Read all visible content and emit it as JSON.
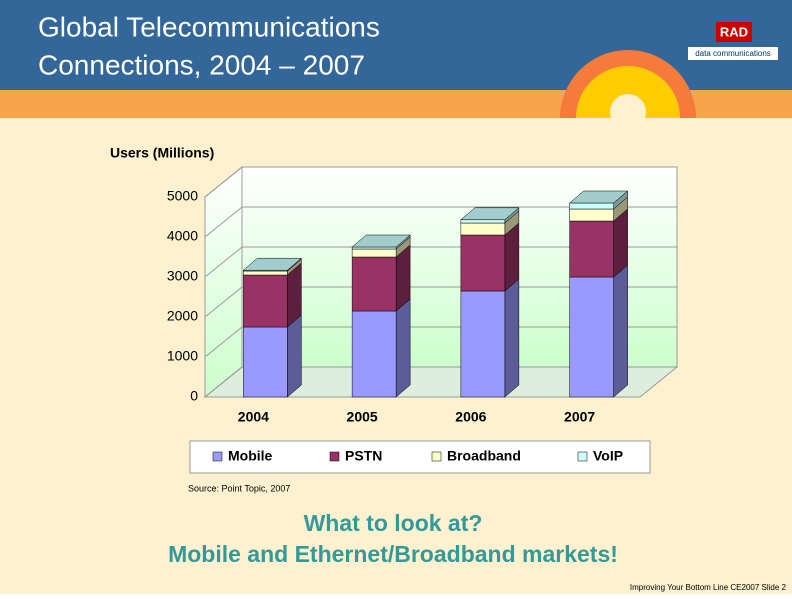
{
  "slide": {
    "title": [
      "Global Telecommunications",
      "Connections, 2004 – 2007"
    ],
    "logo": {
      "mark": "RAD",
      "text": "data communications"
    },
    "source": "Source: Point Topic, 2007",
    "headline": [
      "What to look at?",
      "Mobile and Ethernet/Broadband markets!"
    ],
    "footer": "Improving Your Bottom Line CE2007  Slide 2"
  },
  "chart_data": {
    "type": "stacked-bar-3d",
    "y_label": "Users (Millions)",
    "categories": [
      "2004",
      "2005",
      "2006",
      "2007"
    ],
    "series": [
      {
        "name": "Mobile",
        "color": "#9999ff",
        "values": [
          1750,
          2150,
          2650,
          3000
        ]
      },
      {
        "name": "PSTN",
        "color": "#993366",
        "values": [
          1300,
          1350,
          1400,
          1400
        ]
      },
      {
        "name": "Broadband",
        "color": "#ffffcc",
        "values": [
          100,
          200,
          300,
          300
        ]
      },
      {
        "name": "VoIP",
        "color": "#ccffff",
        "values": [
          20,
          50,
          80,
          150
        ]
      }
    ],
    "ylim": [
      0,
      5000
    ],
    "yticks": [
      0,
      1000,
      2000,
      3000,
      4000,
      5000
    ],
    "grid": true,
    "legend": "bottom"
  }
}
